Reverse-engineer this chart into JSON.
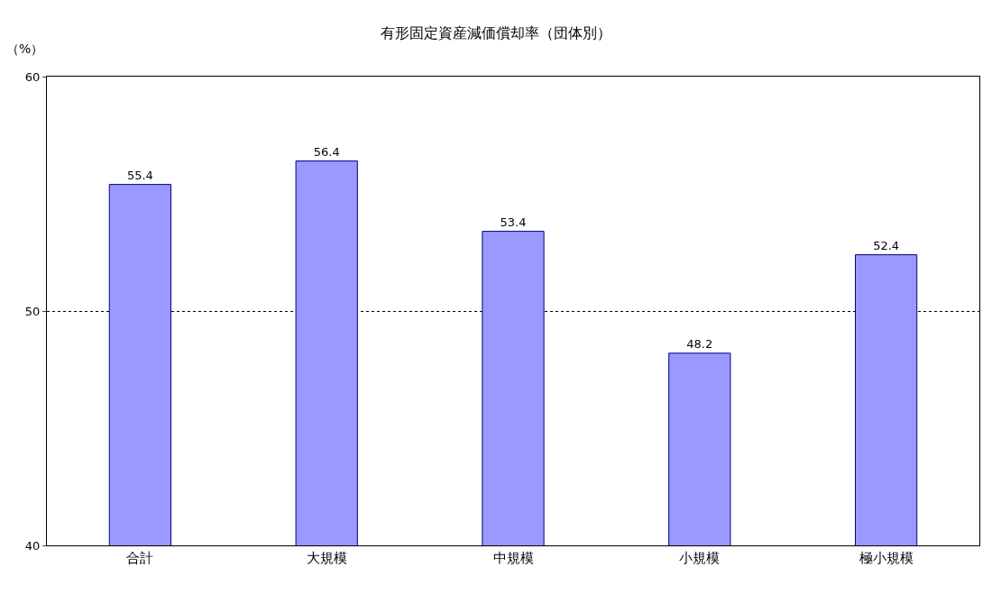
{
  "chart_data": {
    "type": "bar",
    "title": "有形固定資産減価償却率（団体別）",
    "ylabel": "（%）",
    "categories": [
      "合計",
      "大規模",
      "中規模",
      "小規模",
      "極小規模"
    ],
    "values": [
      55.4,
      56.4,
      53.4,
      48.2,
      52.4
    ],
    "color": "#9999ff",
    "ylim": [
      40,
      60
    ],
    "yticks": [
      40,
      50,
      60
    ],
    "grid": "y",
    "data_labels": true,
    "legend": false
  }
}
